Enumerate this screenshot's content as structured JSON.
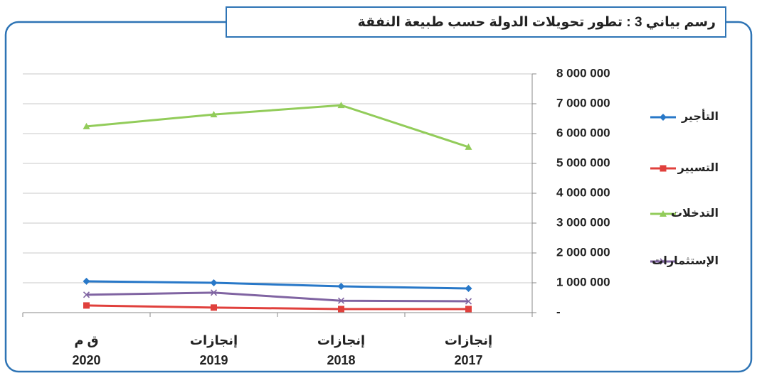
{
  "chart_data": {
    "type": "line",
    "title": "رسم بياني 3 : تطور تحويلات الدولة حسب طبيعة النفقة",
    "categories": [
      [
        "إنجازات",
        "2017"
      ],
      [
        "إنجازات",
        "2018"
      ],
      [
        "إنجازات",
        "2019"
      ],
      [
        "ق م",
        "2020"
      ]
    ],
    "x_reversed": true,
    "series": [
      {
        "name": "التأجير",
        "color": "#2878c8",
        "marker": "diamond",
        "values": [
          810000,
          880000,
          1000000,
          1050000
        ]
      },
      {
        "name": "التسيير",
        "color": "#e0403c",
        "marker": "square",
        "values": [
          120000,
          120000,
          170000,
          240000
        ]
      },
      {
        "name": "التدخلات",
        "color": "#92cc5a",
        "marker": "triangle",
        "values": [
          5550000,
          6950000,
          6640000,
          6240000
        ]
      },
      {
        "name": "الإستثمارات",
        "color": "#8064a2",
        "marker": "x",
        "values": [
          380000,
          400000,
          670000,
          600000
        ]
      }
    ],
    "ylim": [
      0,
      8000000
    ],
    "yticks": [
      {
        "value": 0,
        "label": "-"
      },
      {
        "value": 1000000,
        "label": "1 000 000"
      },
      {
        "value": 2000000,
        "label": "2 000 000"
      },
      {
        "value": 3000000,
        "label": "3 000 000"
      },
      {
        "value": 4000000,
        "label": "4 000 000"
      },
      {
        "value": 5000000,
        "label": "5 000 000"
      },
      {
        "value": 6000000,
        "label": "6 000 000"
      },
      {
        "value": 7000000,
        "label": "7 000 000"
      },
      {
        "value": 8000000,
        "label": "8 000 000"
      }
    ],
    "grid": true,
    "yaxis_side": "right",
    "legend": "right"
  }
}
